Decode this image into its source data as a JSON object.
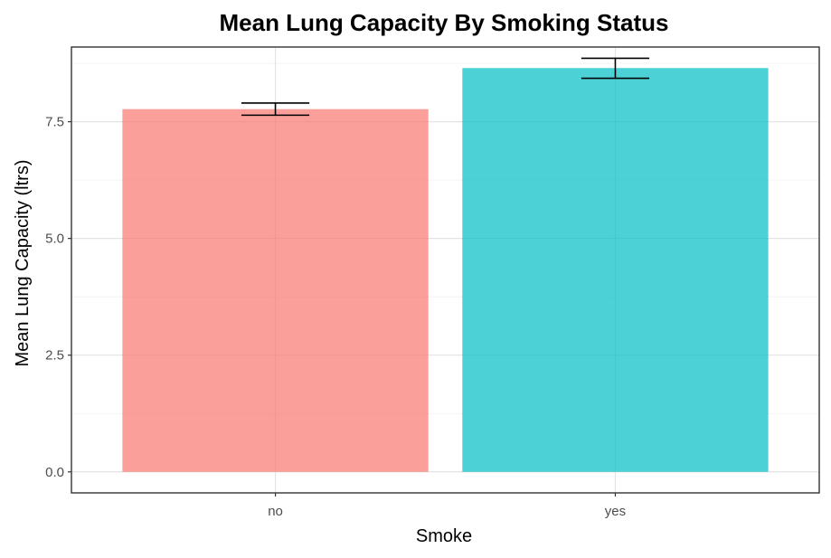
{
  "chart_data": {
    "type": "bar",
    "title": "Mean Lung Capacity By Smoking Status",
    "xlabel": "Smoke",
    "ylabel": "Mean Lung Capacity (ltrs)",
    "categories": [
      "no",
      "yes"
    ],
    "values": [
      7.77,
      8.65
    ],
    "error_bars": [
      {
        "lower": 7.64,
        "upper": 7.9
      },
      {
        "lower": 8.43,
        "upper": 8.86
      }
    ],
    "bar_colors": [
      "#F8766D",
      "#00BFC4"
    ],
    "ylim": [
      -0.45,
      9.1
    ],
    "yticks": [
      0.0,
      2.5,
      5.0,
      7.5
    ],
    "ytick_labels": [
      "0.0",
      "2.5",
      "5.0",
      "7.5"
    ],
    "grid": true,
    "legend": "none"
  }
}
